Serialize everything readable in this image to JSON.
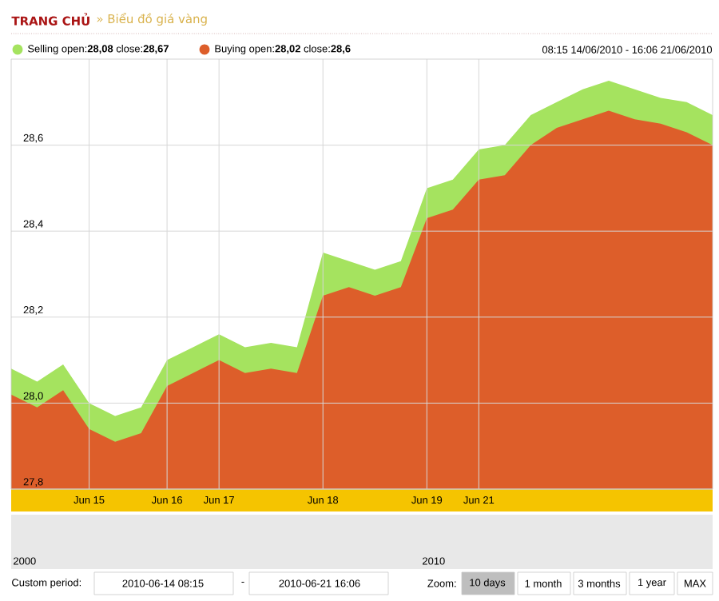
{
  "chart_data": {
    "type": "area",
    "title": "TRANG CHỦ",
    "subtitle": "08:15 14/06/2010 - 16:06 21/06/2010",
    "categories": [
      null,
      null,
      null,
      "Jun 15",
      null,
      null,
      "Jun 16",
      null,
      "Jun 17",
      null,
      null,
      null,
      "Jun 18",
      null,
      null,
      null,
      "Jun 19",
      null,
      "Jun 21",
      null,
      null,
      null,
      null,
      null,
      null,
      null,
      null,
      null
    ],
    "series": [
      {
        "name": "Selling open:**28,08** close:**28,67**",
        "color": "#a5e35f",
        "values": [
          28.08,
          28.05,
          28.09,
          28.0,
          27.97,
          27.99,
          28.1,
          28.13,
          28.16,
          28.13,
          28.14,
          28.13,
          28.35,
          28.33,
          28.31,
          28.33,
          28.5,
          28.52,
          28.59,
          28.6,
          28.67,
          28.7,
          28.73,
          28.75,
          28.73,
          28.71,
          28.7,
          28.67
        ]
      },
      {
        "name": "Buying open:**28,02** close:**28,6**",
        "color": "#dd5e2a",
        "values": [
          28.02,
          27.99,
          28.03,
          27.94,
          27.91,
          27.93,
          28.04,
          28.07,
          28.1,
          28.07,
          28.08,
          28.07,
          28.25,
          28.27,
          28.25,
          28.27,
          28.43,
          28.45,
          28.52,
          28.53,
          28.6,
          28.64,
          28.66,
          28.68,
          28.66,
          28.65,
          28.63,
          28.6
        ]
      }
    ],
    "ylim": [
      27.8,
      28.8
    ],
    "yticks": [
      {
        "value": 27.8,
        "label": "27,8"
      },
      {
        "value": 28.0,
        "label": "28,0"
      },
      {
        "value": 28.2,
        "label": "28,2"
      },
      {
        "value": 28.4,
        "label": "28,4"
      },
      {
        "value": 28.6,
        "label": "28,6"
      }
    ],
    "grid": true,
    "legend": "top left",
    "annotations": [
      "» Biểu đồ giá vàng",
      "2000",
      "2010",
      "Custom period:",
      "2010-06-14 08:15",
      "-",
      "2010-06-21 16:06",
      "Zoom:",
      "10 days",
      "1 month",
      "3 months",
      "1 year",
      "MAX"
    ]
  }
}
